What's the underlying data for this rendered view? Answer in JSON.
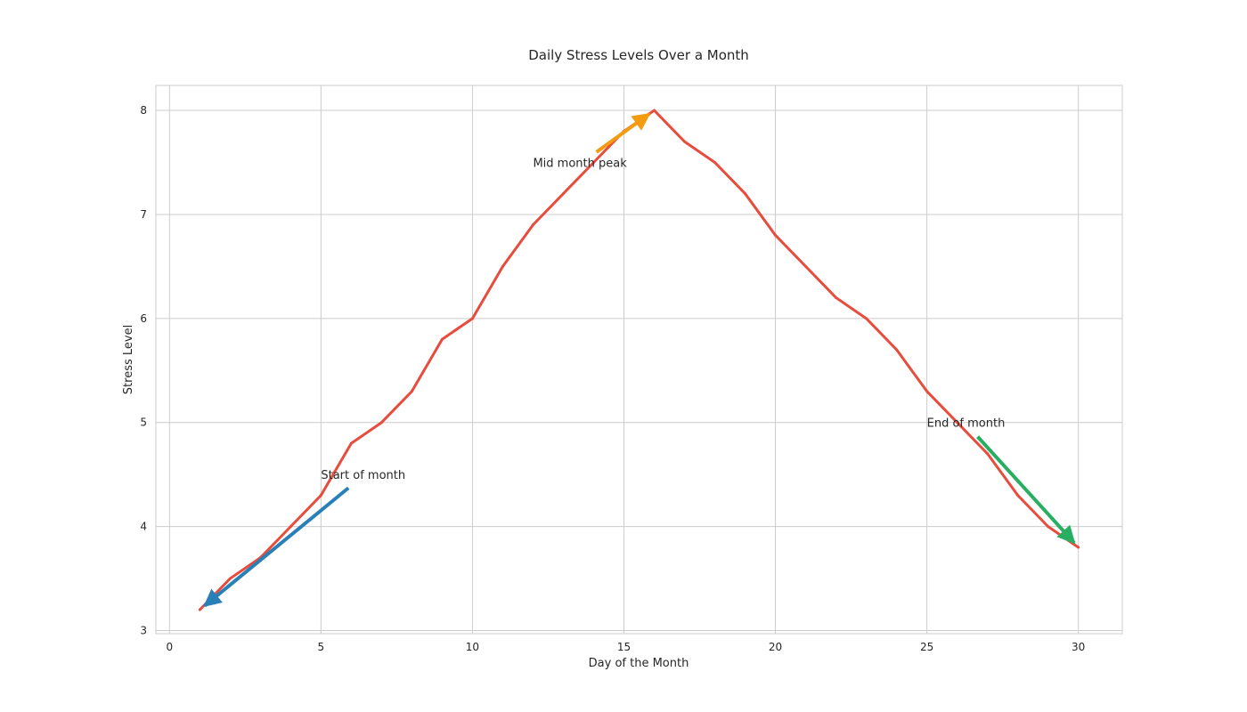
{
  "chart_data": {
    "type": "line",
    "title": "Daily Stress Levels Over a Month",
    "xlabel": "Day of the Month",
    "ylabel": "Stress Level",
    "xlim": [
      -0.45,
      31.45
    ],
    "ylim": [
      2.97,
      8.24
    ],
    "xticks": [
      0,
      5,
      10,
      15,
      20,
      25,
      30
    ],
    "yticks": [
      3,
      4,
      5,
      6,
      7,
      8
    ],
    "grid": true,
    "series": [
      {
        "color": "#e74c3c",
        "x": [
          1,
          2,
          3,
          4,
          5,
          6,
          7,
          8,
          9,
          10,
          11,
          12,
          13,
          14,
          15,
          16,
          17,
          18,
          19,
          20,
          21,
          22,
          23,
          24,
          25,
          26,
          27,
          28,
          29,
          30
        ],
        "y": [
          3.2,
          3.5,
          3.7,
          4.0,
          4.3,
          4.8,
          5.0,
          5.3,
          5.8,
          6.0,
          6.5,
          6.9,
          7.2,
          7.5,
          7.8,
          8.0,
          7.7,
          7.5,
          7.2,
          6.8,
          6.5,
          6.2,
          6.0,
          5.7,
          5.3,
          5.0,
          4.7,
          4.3,
          4.0,
          3.8
        ]
      }
    ],
    "annotations": [
      {
        "text": "Start of month",
        "text_x": 5,
        "text_y": 4.5,
        "target_x": 1,
        "target_y": 3.2,
        "color": "#2980b9"
      },
      {
        "text": "Mid month peak",
        "text_x": 12,
        "text_y": 7.5,
        "target_x": 16,
        "target_y": 8.0,
        "color": "#f39c12"
      },
      {
        "text": "End of month",
        "text_x": 25,
        "text_y": 5.0,
        "target_x": 30,
        "target_y": 3.8,
        "color": "#27ae60"
      }
    ]
  }
}
